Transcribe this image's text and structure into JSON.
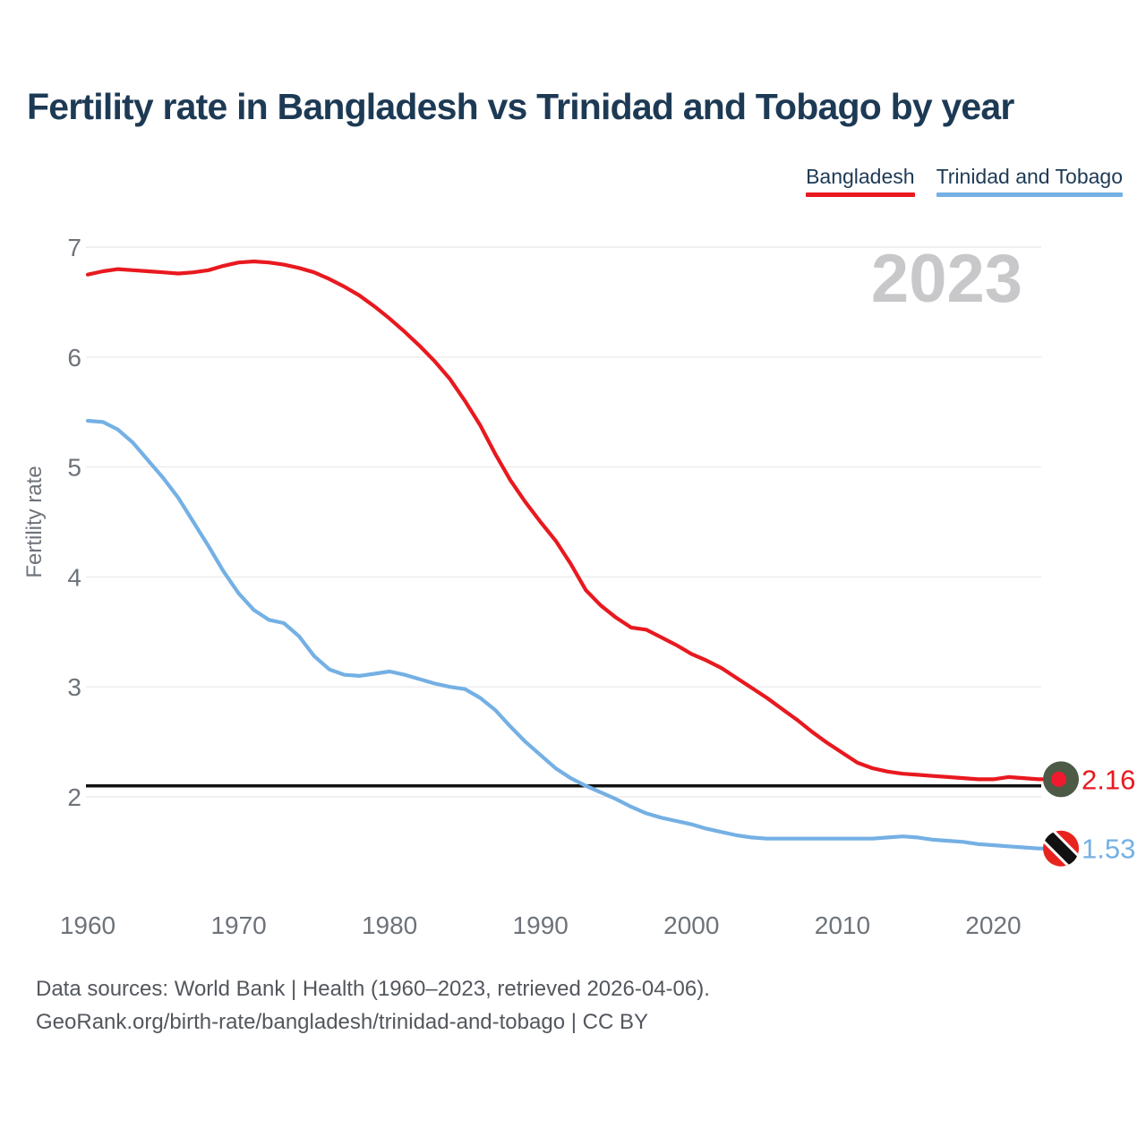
{
  "title": "Fertility rate in Bangladesh vs Trinidad and Tobago by year",
  "watermark": "2023",
  "footer": {
    "line1": "Data sources: World Bank | Health (1960–2023, retrieved 2026-04-06).",
    "line2": "GeoRank.org/birth-rate/bangladesh/trinidad-and-tobago | CC BY"
  },
  "colors": {
    "background": "#ffffff",
    "title_text": "#1d3a55",
    "axis_text": "#6e737a",
    "grid": "#ececee",
    "watermark": "#c8c8ca",
    "reference_line": "#111111",
    "bangladesh": "#e8191f",
    "trinidad_and_tobago": "#74b0e4"
  },
  "flags": {
    "bangladesh": {
      "field": "#4d5a45",
      "disc": "#f2182e"
    },
    "trinidad_and_tobago": {
      "field": "#e8241f",
      "band": "#111111",
      "band_border": "#ffffff"
    }
  },
  "chart_data": {
    "type": "line",
    "title": "Fertility rate in Bangladesh vs Trinidad and Tobago by year",
    "xlabel": "",
    "ylabel": "Fertility rate",
    "x_years_range": [
      1960,
      2023
    ],
    "x_step": 1,
    "xticks": [
      1960,
      1970,
      1980,
      1990,
      2000,
      2010,
      2020
    ],
    "yticks": [
      2,
      3,
      4,
      5,
      6,
      7
    ],
    "ylim": [
      1.4,
      7.15
    ],
    "grid": "horizontal",
    "legend_position": "top-right",
    "watermark_year": "2023",
    "reference_line": {
      "value": 2.1,
      "color": "#111111",
      "meaning": "replacement-level fertility"
    },
    "series": [
      {
        "name": "Bangladesh",
        "color": "#e8191f",
        "end_value": 2.16,
        "end_label": "2.16",
        "flag": "bangladesh",
        "values": [
          6.75,
          6.78,
          6.8,
          6.79,
          6.78,
          6.77,
          6.76,
          6.77,
          6.79,
          6.83,
          6.86,
          6.87,
          6.86,
          6.84,
          6.81,
          6.77,
          6.71,
          6.64,
          6.56,
          6.46,
          6.35,
          6.23,
          6.1,
          5.96,
          5.8,
          5.6,
          5.38,
          5.12,
          4.88,
          4.68,
          4.5,
          4.33,
          4.12,
          3.88,
          3.74,
          3.63,
          3.54,
          3.52,
          3.45,
          3.38,
          3.3,
          3.24,
          3.17,
          3.08,
          2.99,
          2.9,
          2.8,
          2.7,
          2.59,
          2.49,
          2.4,
          2.31,
          2.26,
          2.23,
          2.21,
          2.2,
          2.19,
          2.18,
          2.17,
          2.16,
          2.16,
          2.18,
          2.17,
          2.16
        ]
      },
      {
        "name": "Trinidad and Tobago",
        "color": "#74b0e4",
        "end_value": 1.53,
        "end_label": "1.53",
        "flag": "trinidad_and_tobago",
        "values": [
          5.42,
          5.41,
          5.34,
          5.22,
          5.06,
          4.9,
          4.72,
          4.5,
          4.28,
          4.05,
          3.85,
          3.7,
          3.61,
          3.58,
          3.46,
          3.28,
          3.16,
          3.11,
          3.1,
          3.12,
          3.14,
          3.11,
          3.07,
          3.03,
          3.0,
          2.98,
          2.9,
          2.79,
          2.64,
          2.5,
          2.38,
          2.26,
          2.17,
          2.1,
          2.04,
          1.98,
          1.91,
          1.85,
          1.81,
          1.78,
          1.75,
          1.71,
          1.68,
          1.65,
          1.63,
          1.62,
          1.62,
          1.62,
          1.62,
          1.62,
          1.62,
          1.62,
          1.62,
          1.63,
          1.64,
          1.63,
          1.61,
          1.6,
          1.59,
          1.57,
          1.56,
          1.55,
          1.54,
          1.53
        ]
      }
    ]
  }
}
